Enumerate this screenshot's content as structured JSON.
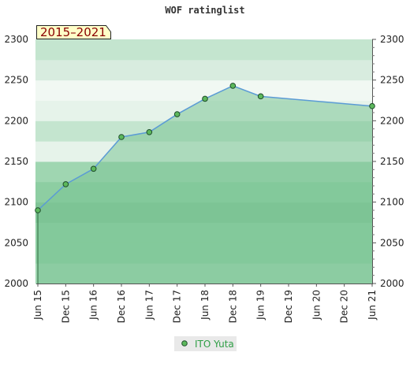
{
  "chart_data": {
    "type": "area",
    "title": "WOF ratinglist",
    "period_badge": "2015–2021",
    "x_ticks": [
      "Jun 15",
      "Dec 15",
      "Jun 16",
      "Dec 16",
      "Jun 17",
      "Dec 17",
      "Jun 18",
      "Dec 18",
      "Jun 19",
      "Dec 19",
      "Jun 20",
      "Dec 20",
      "Jun 21"
    ],
    "y_ticks": [
      2000,
      2050,
      2100,
      2150,
      2200,
      2250,
      2300
    ],
    "ylim": [
      2000,
      2300
    ],
    "series": [
      {
        "name": "ITO Yuta",
        "x": [
          "Jun 15",
          "Dec 15",
          "Jun 16",
          "Dec 16",
          "Jun 17",
          "Dec 17",
          "Jun 18",
          "Dec 18",
          "Jun 19",
          "Jun 21"
        ],
        "values": [
          2090,
          2122,
          2141,
          2180,
          2186,
          2208,
          2227,
          2243,
          2230,
          2218
        ]
      }
    ],
    "grid": true,
    "legend": "bottom-center",
    "colors": {
      "line": "#5b9bd5",
      "fill": "#7cc495",
      "marker": "#5cb85c",
      "badge_bg": "#ffffc8",
      "badge_text": "#8a0000",
      "legend_text": "#2e9e45"
    }
  }
}
